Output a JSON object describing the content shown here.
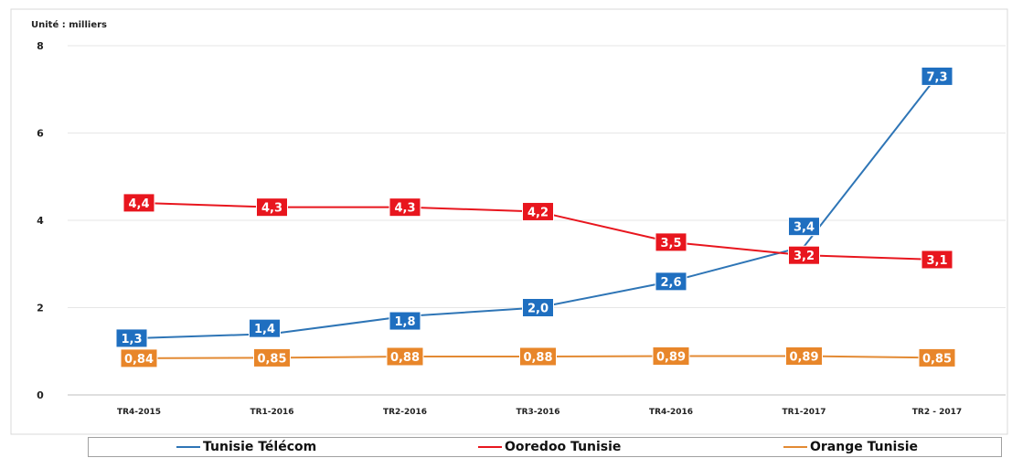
{
  "chart_data": {
    "type": "line",
    "unit_label": "Unité : milliers",
    "categories": [
      "TR4-2015",
      "TR1-2016",
      "TR2-2016",
      "TR3-2016",
      "TR4-2016",
      "TR1-2017",
      "TR2 - 2017"
    ],
    "ylim": [
      0,
      8
    ],
    "yticks": [
      "0",
      "2",
      "4",
      "6",
      "8"
    ],
    "grid": true,
    "legend_position": "bottom",
    "series": [
      {
        "name": "Tunisie Télécom",
        "color": "#2e75b6",
        "label_bg": "#1f6fc0",
        "values": [
          1.3,
          1.4,
          1.8,
          2.0,
          2.6,
          3.4,
          7.3
        ],
        "labels": [
          "1,3",
          "1,4",
          "1,8",
          "2,0",
          "2,6",
          "3,4",
          "7,3"
        ]
      },
      {
        "name": "Ooredoo Tunisie",
        "color": "#e8161e",
        "label_bg": "#e8161e",
        "values": [
          4.4,
          4.3,
          4.3,
          4.2,
          3.5,
          3.2,
          3.1
        ],
        "labels": [
          "4,4",
          "4,3",
          "4,3",
          "4,2",
          "3,5",
          "3,2",
          "3,1"
        ]
      },
      {
        "name": "Orange Tunisie",
        "color": "#e38a33",
        "label_bg": "#e8862a",
        "values": [
          0.84,
          0.85,
          0.88,
          0.88,
          0.89,
          0.89,
          0.85
        ],
        "labels": [
          "0,84",
          "0,85",
          "0,88",
          "0,88",
          "0,89",
          "0,89",
          "0,85"
        ]
      }
    ]
  }
}
